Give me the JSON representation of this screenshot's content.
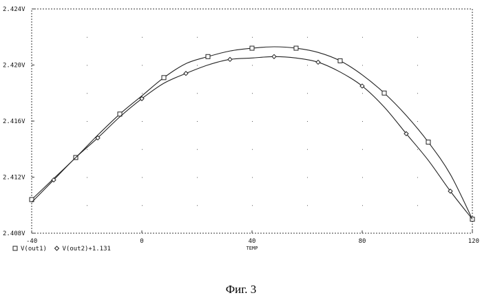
{
  "chart_data": {
    "type": "line",
    "title": "",
    "xlabel": "TEMP",
    "ylabel": "",
    "xlim": [
      -40,
      120
    ],
    "ylim": [
      2.408,
      2.424
    ],
    "x_ticks": [
      -40,
      0,
      40,
      80,
      120
    ],
    "x_tick_labels": [
      "-40",
      "0",
      "40",
      "80",
      "120"
    ],
    "y_ticks": [
      2.408,
      2.412,
      2.416,
      2.42,
      2.424
    ],
    "y_tick_labels": [
      "2.408V",
      "2.412V",
      "2.416V",
      "2.420V",
      "2.424V"
    ],
    "grid": true,
    "legend_position": "bottom-left",
    "series": [
      {
        "name": "V(out1)",
        "marker": "square",
        "x": [
          -40,
          -32,
          -24,
          -16,
          -8,
          0,
          8,
          16,
          24,
          32,
          40,
          48,
          56,
          64,
          72,
          80,
          88,
          96,
          104,
          112,
          120
        ],
        "values": [
          2.4104,
          2.4119,
          2.4134,
          2.415,
          2.4165,
          2.4178,
          2.4191,
          2.4201,
          2.4206,
          2.421,
          2.4212,
          2.4213,
          2.4212,
          2.4209,
          2.4203,
          2.4193,
          2.418,
          2.4164,
          2.4145,
          2.4122,
          2.409
        ]
      },
      {
        "name": "V(out2)+1.131",
        "marker": "diamond",
        "x": [
          -40,
          -32,
          -24,
          -16,
          -8,
          0,
          8,
          16,
          24,
          32,
          40,
          48,
          56,
          64,
          72,
          80,
          88,
          96,
          104,
          112,
          120
        ],
        "values": [
          2.4102,
          2.4118,
          2.4134,
          2.4148,
          2.4163,
          2.4176,
          2.4187,
          2.4194,
          2.42,
          2.4204,
          2.4205,
          2.4206,
          2.4205,
          2.4202,
          2.4195,
          2.4185,
          2.417,
          2.4151,
          2.4132,
          2.411,
          2.409
        ]
      }
    ]
  },
  "caption": "Фиг. 3"
}
